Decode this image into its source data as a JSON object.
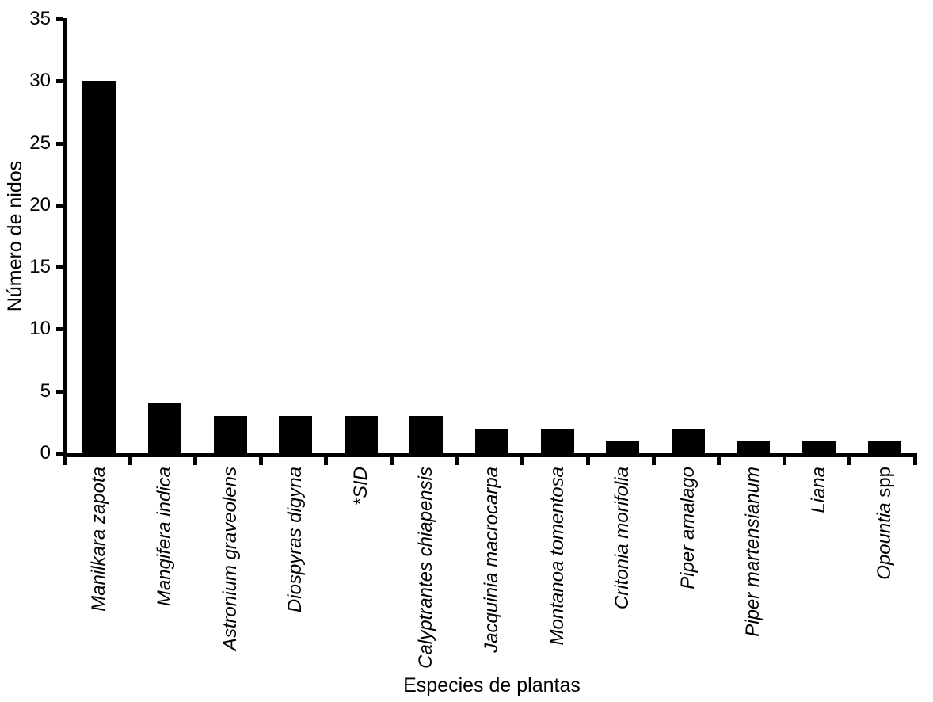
{
  "chart_data": {
    "type": "bar",
    "title": "",
    "xlabel": "Especies de plantas",
    "ylabel": "Número de nidos",
    "categories": [
      {
        "italic": "Manilkara zapota",
        "roman": ""
      },
      {
        "italic": "Mangifera indica",
        "roman": ""
      },
      {
        "italic": "Astronium graveolens",
        "roman": ""
      },
      {
        "italic": "Diospyras digyna",
        "roman": ""
      },
      {
        "italic": "*SID",
        "roman": ""
      },
      {
        "italic": "Calyptrantes chiapensis",
        "roman": ""
      },
      {
        "italic": "Jacquinia macrocarpa",
        "roman": ""
      },
      {
        "italic": "Montanoa tomentosa",
        "roman": ""
      },
      {
        "italic": "Critonia morifolia",
        "roman": ""
      },
      {
        "italic": "Piper amalago",
        "roman": ""
      },
      {
        "italic": "Piper martensianum",
        "roman": ""
      },
      {
        "italic": "Liana",
        "roman": ""
      },
      {
        "italic": "Opountia",
        "roman": " spp"
      }
    ],
    "values": [
      30,
      4,
      3,
      3,
      3,
      3,
      2,
      2,
      1,
      2,
      1,
      1,
      1
    ],
    "ylim": [
      0,
      35
    ],
    "yticks": [
      0,
      5,
      10,
      15,
      20,
      25,
      30,
      35
    ],
    "bar_color": "#000000",
    "axis_color": "#000000",
    "background": "#ffffff",
    "grid": false,
    "legend": null
  }
}
